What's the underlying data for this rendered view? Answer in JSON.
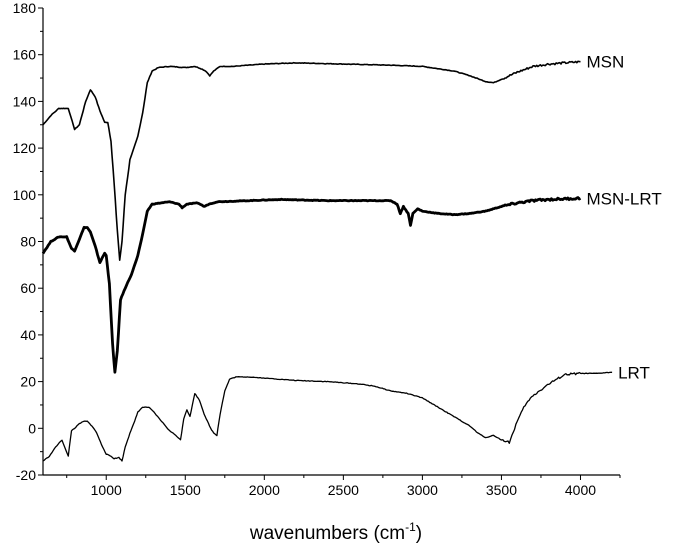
{
  "chart_data": {
    "type": "line",
    "xlabel": "wavenumbers (cm",
    "xlabel_sup": "-1",
    "xlabel_close": ")",
    "ylabel": "",
    "xlim": [
      600,
      4250
    ],
    "ylim": [
      -20,
      180
    ],
    "x_ticks": [
      1000,
      1500,
      2000,
      2500,
      3000,
      3500,
      4000
    ],
    "y_ticks": [
      -20,
      0,
      20,
      40,
      60,
      80,
      100,
      120,
      140,
      160,
      180
    ],
    "grid": false,
    "series": [
      {
        "name": "MSN",
        "line_width": 1.6,
        "points": [
          [
            600,
            130
          ],
          [
            650,
            134
          ],
          [
            700,
            137
          ],
          [
            760,
            137
          ],
          [
            800,
            128
          ],
          [
            830,
            130
          ],
          [
            870,
            140
          ],
          [
            900,
            145
          ],
          [
            930,
            142
          ],
          [
            960,
            136
          ],
          [
            990,
            131
          ],
          [
            1010,
            131
          ],
          [
            1030,
            123
          ],
          [
            1050,
            105
          ],
          [
            1070,
            85
          ],
          [
            1085,
            72
          ],
          [
            1100,
            80
          ],
          [
            1120,
            100
          ],
          [
            1150,
            115
          ],
          [
            1200,
            125
          ],
          [
            1230,
            135
          ],
          [
            1260,
            148
          ],
          [
            1290,
            153
          ],
          [
            1330,
            154.5
          ],
          [
            1400,
            155
          ],
          [
            1500,
            154.5
          ],
          [
            1560,
            155
          ],
          [
            1600,
            154
          ],
          [
            1630,
            153
          ],
          [
            1655,
            151
          ],
          [
            1680,
            153
          ],
          [
            1720,
            155
          ],
          [
            1800,
            155
          ],
          [
            2000,
            156
          ],
          [
            2200,
            156.5
          ],
          [
            2500,
            156
          ],
          [
            2800,
            155.5
          ],
          [
            3000,
            155
          ],
          [
            3200,
            153
          ],
          [
            3300,
            151
          ],
          [
            3400,
            148.5
          ],
          [
            3450,
            148
          ],
          [
            3500,
            149.5
          ],
          [
            3600,
            152.5
          ],
          [
            3700,
            155
          ],
          [
            3800,
            156
          ],
          [
            3900,
            156.5
          ],
          [
            4000,
            157
          ]
        ]
      },
      {
        "name": "MSN-LRT",
        "line_width": 2.8,
        "points": [
          [
            600,
            75
          ],
          [
            650,
            80
          ],
          [
            700,
            82
          ],
          [
            750,
            82
          ],
          [
            780,
            77
          ],
          [
            800,
            76
          ],
          [
            830,
            81
          ],
          [
            860,
            86
          ],
          [
            880,
            86
          ],
          [
            900,
            84
          ],
          [
            930,
            78
          ],
          [
            960,
            71
          ],
          [
            990,
            75
          ],
          [
            1000,
            74
          ],
          [
            1020,
            62
          ],
          [
            1040,
            36
          ],
          [
            1055,
            24
          ],
          [
            1070,
            33
          ],
          [
            1090,
            55
          ],
          [
            1120,
            60
          ],
          [
            1160,
            66
          ],
          [
            1200,
            74
          ],
          [
            1230,
            83
          ],
          [
            1260,
            93
          ],
          [
            1290,
            96
          ],
          [
            1400,
            97
          ],
          [
            1460,
            96
          ],
          [
            1480,
            94.5
          ],
          [
            1510,
            96
          ],
          [
            1580,
            96.5
          ],
          [
            1620,
            95
          ],
          [
            1650,
            96
          ],
          [
            1700,
            97
          ],
          [
            1900,
            97.5
          ],
          [
            2100,
            98
          ],
          [
            2400,
            97.5
          ],
          [
            2700,
            97.5
          ],
          [
            2800,
            97.5
          ],
          [
            2840,
            96
          ],
          [
            2860,
            92
          ],
          [
            2880,
            95
          ],
          [
            2910,
            92
          ],
          [
            2925,
            87
          ],
          [
            2940,
            92
          ],
          [
            2970,
            94
          ],
          [
            3000,
            93
          ],
          [
            3100,
            92
          ],
          [
            3200,
            91.5
          ],
          [
            3300,
            92
          ],
          [
            3400,
            93
          ],
          [
            3500,
            95
          ],
          [
            3600,
            96.5
          ],
          [
            3700,
            97.5
          ],
          [
            3800,
            98
          ],
          [
            4000,
            98.5
          ]
        ]
      },
      {
        "name": "LRT",
        "line_width": 1.3,
        "points": [
          [
            600,
            -14
          ],
          [
            640,
            -12
          ],
          [
            680,
            -8
          ],
          [
            720,
            -5
          ],
          [
            760,
            -12
          ],
          [
            780,
            -1
          ],
          [
            800,
            0
          ],
          [
            830,
            2
          ],
          [
            860,
            3
          ],
          [
            880,
            3
          ],
          [
            910,
            1
          ],
          [
            940,
            -2
          ],
          [
            970,
            -7
          ],
          [
            1000,
            -11
          ],
          [
            1030,
            -12
          ],
          [
            1050,
            -13
          ],
          [
            1080,
            -12.5
          ],
          [
            1100,
            -14
          ],
          [
            1120,
            -8
          ],
          [
            1150,
            -2
          ],
          [
            1180,
            3
          ],
          [
            1200,
            7
          ],
          [
            1230,
            9
          ],
          [
            1270,
            9
          ],
          [
            1300,
            7
          ],
          [
            1350,
            3
          ],
          [
            1400,
            -1
          ],
          [
            1440,
            -3
          ],
          [
            1470,
            -5
          ],
          [
            1490,
            4
          ],
          [
            1510,
            8
          ],
          [
            1530,
            5
          ],
          [
            1560,
            15
          ],
          [
            1590,
            12
          ],
          [
            1620,
            6
          ],
          [
            1640,
            3
          ],
          [
            1660,
            0
          ],
          [
            1680,
            -2
          ],
          [
            1700,
            -3
          ],
          [
            1720,
            6
          ],
          [
            1750,
            16
          ],
          [
            1780,
            21
          ],
          [
            1820,
            22
          ],
          [
            1900,
            22
          ],
          [
            2000,
            21.5
          ],
          [
            2200,
            20.5
          ],
          [
            2400,
            20
          ],
          [
            2600,
            19
          ],
          [
            2700,
            18
          ],
          [
            2800,
            16
          ],
          [
            2900,
            15
          ],
          [
            3000,
            13
          ],
          [
            3100,
            9
          ],
          [
            3200,
            5
          ],
          [
            3300,
            1
          ],
          [
            3350,
            -2
          ],
          [
            3400,
            -4
          ],
          [
            3450,
            -3
          ],
          [
            3500,
            -5
          ],
          [
            3550,
            -6
          ],
          [
            3600,
            3
          ],
          [
            3650,
            10
          ],
          [
            3700,
            14
          ],
          [
            3800,
            19
          ],
          [
            3900,
            23
          ],
          [
            4000,
            23.5
          ],
          [
            4100,
            23.5
          ],
          [
            4200,
            24
          ]
        ]
      }
    ]
  }
}
